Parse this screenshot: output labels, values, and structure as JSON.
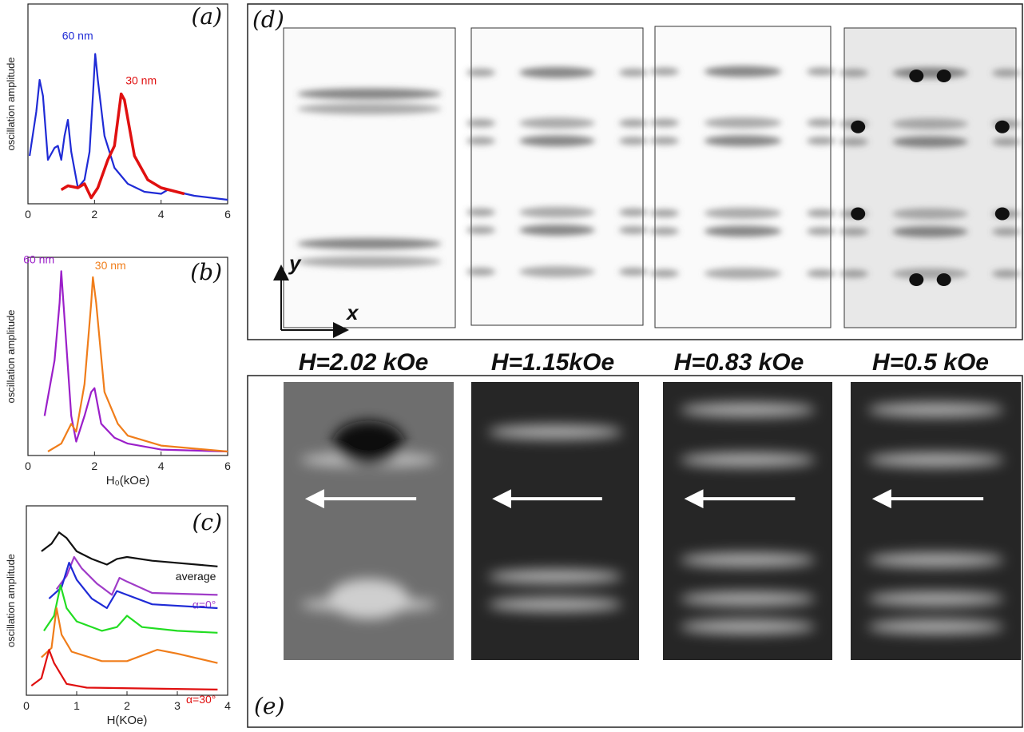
{
  "chart_data": [
    {
      "type": "line",
      "panel_label": "(a)",
      "ylabel": "oscillation amplitude",
      "xlim": [
        0,
        6
      ],
      "xticks": [
        0,
        2,
        4,
        6
      ],
      "ylim": [
        0,
        1
      ],
      "series": [
        {
          "name": "60 nm",
          "color": "#1f2bd6",
          "x": [
            0.05,
            0.25,
            0.35,
            0.45,
            0.6,
            0.8,
            0.9,
            1.0,
            1.1,
            1.2,
            1.3,
            1.5,
            1.7,
            1.85,
            1.95,
            2.02,
            2.1,
            2.3,
            2.6,
            3.0,
            3.5,
            4.0,
            4.2,
            5,
            6
          ],
          "values": [
            0.24,
            0.46,
            0.62,
            0.54,
            0.22,
            0.28,
            0.29,
            0.22,
            0.34,
            0.42,
            0.26,
            0.08,
            0.12,
            0.26,
            0.54,
            0.75,
            0.62,
            0.34,
            0.18,
            0.1,
            0.06,
            0.05,
            0.07,
            0.04,
            0.02
          ]
        },
        {
          "name": "30 nm",
          "color": "#e01010",
          "x": [
            1.0,
            1.2,
            1.5,
            1.7,
            1.9,
            2.1,
            2.4,
            2.6,
            2.8,
            2.9,
            3.2,
            3.6,
            4.0,
            4.7
          ],
          "values": [
            0.07,
            0.09,
            0.08,
            0.1,
            0.03,
            0.08,
            0.22,
            0.29,
            0.55,
            0.52,
            0.24,
            0.12,
            0.08,
            0.05
          ]
        }
      ]
    },
    {
      "type": "line",
      "panel_label": "(b)",
      "ylabel": "oscillation amplitude",
      "xlabel": "H₀(kOe)",
      "xlim": [
        0,
        6
      ],
      "xticks": [
        0,
        2,
        4,
        6
      ],
      "ylim": [
        0,
        1
      ],
      "series": [
        {
          "name": "60 nm",
          "color": "#9b1fc9",
          "x": [
            0.5,
            0.8,
            0.95,
            1.0,
            1.1,
            1.3,
            1.45,
            1.7,
            1.9,
            2.0,
            2.2,
            2.6,
            3,
            4,
            6
          ],
          "values": [
            0.2,
            0.48,
            0.77,
            0.93,
            0.69,
            0.2,
            0.07,
            0.2,
            0.32,
            0.34,
            0.16,
            0.09,
            0.06,
            0.03,
            0.02
          ]
        },
        {
          "name": "30 nm",
          "color": "#f07d1a",
          "x": [
            0.6,
            1.0,
            1.3,
            1.45,
            1.7,
            1.9,
            1.95,
            2.05,
            2.3,
            2.7,
            3,
            4,
            6
          ],
          "values": [
            0.02,
            0.06,
            0.16,
            0.12,
            0.36,
            0.77,
            0.9,
            0.77,
            0.32,
            0.16,
            0.1,
            0.05,
            0.02
          ]
        }
      ]
    },
    {
      "type": "line",
      "panel_label": "(c)",
      "ylabel": "oscillation amplitude",
      "xlabel": "H(KOe)",
      "xlim": [
        0,
        4
      ],
      "xticks": [
        0,
        1,
        2,
        3,
        4
      ],
      "ylim": [
        0,
        1
      ],
      "series": [
        {
          "name": "average",
          "color": "#111111",
          "x": [
            0.3,
            0.5,
            0.65,
            0.8,
            1.0,
            1.3,
            1.6,
            1.8,
            2.0,
            2.5,
            3.8
          ],
          "values": [
            0.76,
            0.8,
            0.86,
            0.83,
            0.76,
            0.72,
            0.69,
            0.72,
            0.73,
            0.71,
            0.68
          ]
        },
        {
          "name": "α=0°",
          "color": "#a03cc8",
          "x": [
            0.6,
            0.8,
            0.95,
            1.1,
            1.4,
            1.7,
            1.85,
            2.0,
            2.5,
            3.8
          ],
          "values": [
            0.56,
            0.63,
            0.73,
            0.67,
            0.59,
            0.53,
            0.62,
            0.6,
            0.54,
            0.53
          ]
        },
        {
          "color": "#1f2bd6",
          "x": [
            0.45,
            0.7,
            0.85,
            1.0,
            1.3,
            1.6,
            1.8,
            2.0,
            2.5,
            3.8
          ],
          "values": [
            0.51,
            0.57,
            0.7,
            0.61,
            0.51,
            0.46,
            0.55,
            0.53,
            0.48,
            0.46
          ]
        },
        {
          "color": "#22dd22",
          "x": [
            0.35,
            0.55,
            0.68,
            0.8,
            1.0,
            1.5,
            1.8,
            2.0,
            2.3,
            3,
            3.8
          ],
          "values": [
            0.34,
            0.42,
            0.58,
            0.46,
            0.39,
            0.34,
            0.36,
            0.42,
            0.36,
            0.34,
            0.33
          ]
        },
        {
          "color": "#f07d1a",
          "x": [
            0.3,
            0.5,
            0.6,
            0.7,
            0.9,
            1.5,
            2.0,
            2.6,
            3.0,
            3.8
          ],
          "values": [
            0.2,
            0.25,
            0.46,
            0.32,
            0.23,
            0.18,
            0.18,
            0.24,
            0.22,
            0.17
          ]
        },
        {
          "name": "α=30°",
          "color": "#e01010",
          "x": [
            0.1,
            0.3,
            0.45,
            0.55,
            0.8,
            1.2,
            3.8
          ],
          "values": [
            0.05,
            0.09,
            0.24,
            0.17,
            0.06,
            0.04,
            0.03
          ]
        }
      ]
    }
  ],
  "images": {
    "d": {
      "panel_label": "(d)",
      "axis_x": "x",
      "axis_y": "y"
    },
    "fields": [
      "H=2.02 kOe",
      "H=1.15kOe",
      "H=0.83 kOe",
      "H=0.5 kOe"
    ],
    "e": {
      "panel_label": "(e)"
    }
  }
}
